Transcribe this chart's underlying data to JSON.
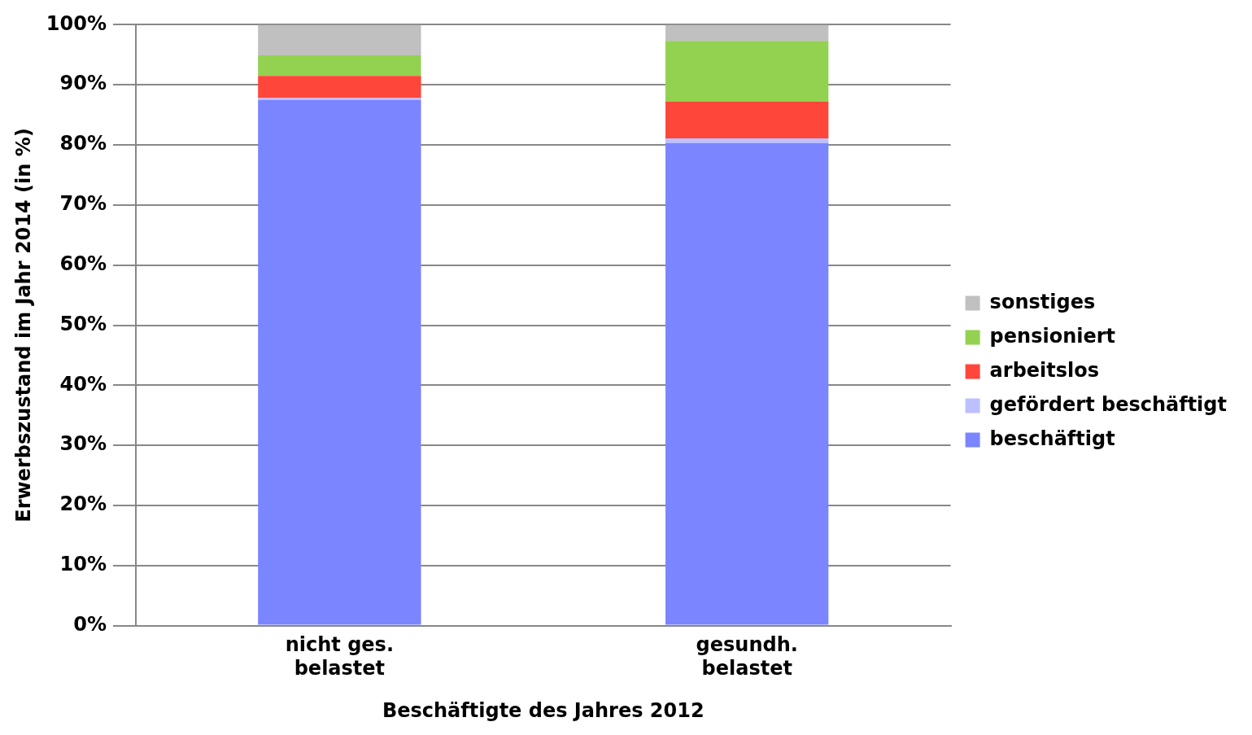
{
  "chart_data": {
    "type": "bar",
    "stacked": true,
    "ylabel": "Erwerbszustand im Jahr 2014 (in %)",
    "xlabel": "Beschäftigte des Jahres 2012",
    "categories": [
      "nicht ges. belastet",
      "gesundh. belastet"
    ],
    "series": [
      {
        "name": "beschäftigt",
        "color": "#7a85ff",
        "values": [
          87.5,
          80.3
        ]
      },
      {
        "name": "gefördert beschäftigt",
        "color": "#bcc0ff",
        "values": [
          0.3,
          0.8
        ]
      },
      {
        "name": "arbeitslos",
        "color": "#ff463a",
        "values": [
          3.7,
          6.1
        ]
      },
      {
        "name": "pensioniert",
        "color": "#93d150",
        "values": [
          3.4,
          10.1
        ]
      },
      {
        "name": "sonstiges",
        "color": "#c0c0c0",
        "values": [
          5.1,
          2.7
        ]
      }
    ],
    "ylim": [
      0,
      100
    ],
    "yticks": [
      {
        "value": 0,
        "label": "0%"
      },
      {
        "value": 10,
        "label": "10%"
      },
      {
        "value": 20,
        "label": "20%"
      },
      {
        "value": 30,
        "label": "30%"
      },
      {
        "value": 40,
        "label": "40%"
      },
      {
        "value": 50,
        "label": "50%"
      },
      {
        "value": 60,
        "label": "60%"
      },
      {
        "value": 70,
        "label": "70%"
      },
      {
        "value": 80,
        "label": "80%"
      },
      {
        "value": 90,
        "label": "90%"
      },
      {
        "value": 100,
        "label": "100%"
      }
    ],
    "grid": "y",
    "legend": "right"
  }
}
